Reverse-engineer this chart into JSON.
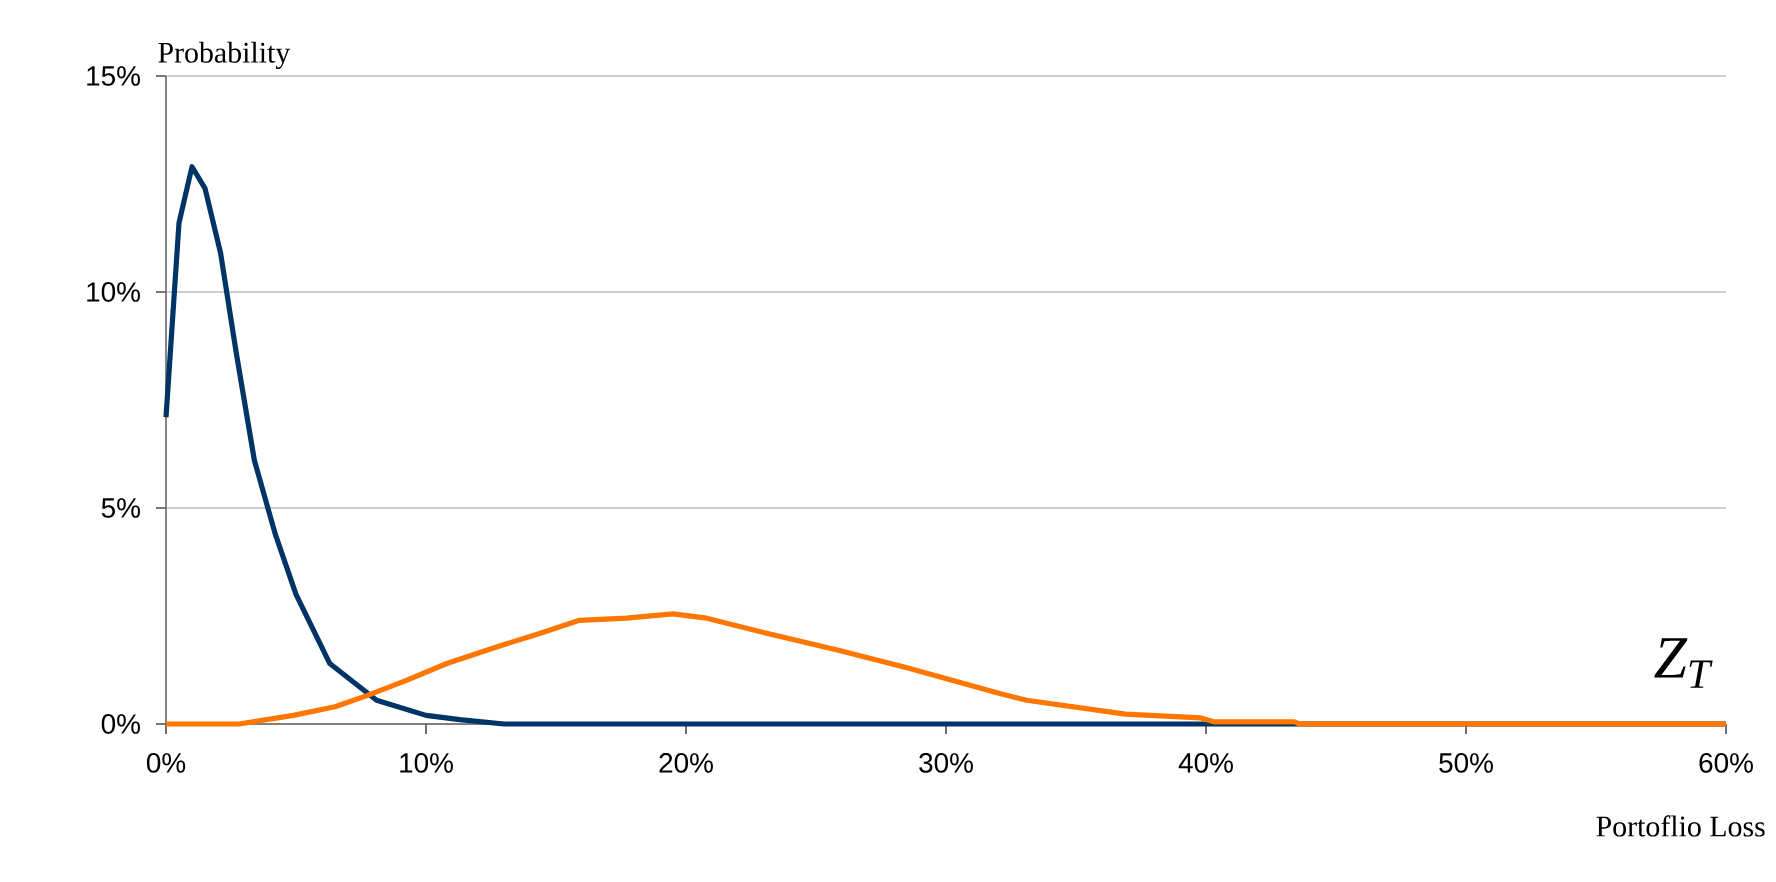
{
  "chart_data": {
    "type": "line",
    "ylabel": "Probability",
    "xlabel": "Portoflio Loss",
    "annotations": [
      "Z$_{T}$"
    ],
    "xlim": [
      0,
      60
    ],
    "ylim": [
      0,
      15
    ],
    "xticks": [
      {
        "value": 0,
        "label": "0%"
      },
      {
        "value": 10,
        "label": "10%"
      },
      {
        "value": 20,
        "label": "20%"
      },
      {
        "value": 30,
        "label": "30%"
      },
      {
        "value": 40,
        "label": "40%"
      },
      {
        "value": 50,
        "label": "50%"
      },
      {
        "value": 60,
        "label": "60%"
      }
    ],
    "yticks": [
      {
        "value": 0,
        "label": "0%"
      },
      {
        "value": 5,
        "label": "5%"
      },
      {
        "value": 10,
        "label": "10%"
      },
      {
        "value": 15,
        "label": "15%"
      }
    ],
    "grid": "y",
    "marker": "none",
    "line_style": "solid",
    "series": [
      {
        "color": "#003366",
        "x": [
          0,
          0.5,
          1.0,
          1.5,
          2.1,
          2.7,
          3.4,
          4.2,
          5.0,
          6.3,
          8.1,
          10,
          11.3,
          13,
          20,
          30,
          40,
          50,
          60
        ],
        "values": [
          7.1,
          11.6,
          12.9,
          12.4,
          10.9,
          8.6,
          6.1,
          4.4,
          3.0,
          1.4,
          0.55,
          0.2,
          0.1,
          0,
          0,
          0,
          0,
          0,
          0
        ]
      },
      {
        "color": "#ff7700",
        "x": [
          0,
          2.8,
          4.9,
          6.5,
          7.7,
          9.2,
          10.8,
          12.8,
          14.4,
          15.9,
          17.7,
          19.5,
          20.8,
          23.1,
          25.9,
          28.5,
          30.3,
          32.1,
          33.1,
          36.9,
          39.8,
          40.3,
          43.4,
          43.6,
          50,
          60
        ],
        "values": [
          0,
          0,
          0.2,
          0.4,
          0.65,
          1.0,
          1.4,
          1.8,
          2.1,
          2.4,
          2.45,
          2.55,
          2.45,
          2.1,
          1.7,
          1.3,
          1.0,
          0.7,
          0.55,
          0.23,
          0.14,
          0.05,
          0.05,
          0,
          0,
          0
        ]
      }
    ]
  }
}
